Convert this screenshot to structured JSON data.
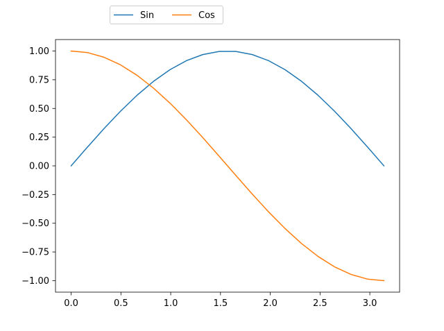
{
  "chart_data": {
    "type": "line",
    "title": "",
    "xlabel": "",
    "ylabel": "",
    "xlim": [
      -0.157,
      3.299
    ],
    "ylim": [
      -1.1,
      1.1
    ],
    "xticks": [
      0.0,
      0.5,
      1.0,
      1.5,
      2.0,
      2.5,
      3.0
    ],
    "xtick_labels": [
      "0.0",
      "0.5",
      "1.0",
      "1.5",
      "2.0",
      "2.5",
      "3.0"
    ],
    "yticks": [
      1.0,
      0.75,
      0.5,
      0.25,
      0.0,
      -0.25,
      -0.5,
      -0.75,
      -1.0
    ],
    "ytick_labels": [
      "1.00",
      "0.75",
      "0.50",
      "0.25",
      "0.00",
      "−0.25",
      "−0.50",
      "−0.75",
      "−1.00"
    ],
    "grid": false,
    "legend": {
      "placement": "top-center, above plot",
      "ncol": 2
    },
    "x": [
      0.0,
      0.1653,
      0.3307,
      0.496,
      0.6614,
      0.8267,
      0.9921,
      1.1574,
      1.3228,
      1.4881,
      1.6535,
      1.8188,
      1.9842,
      2.1495,
      2.3149,
      2.4802,
      2.6456,
      2.8109,
      2.9762,
      3.1416
    ],
    "series": [
      {
        "name": "Sin",
        "color": "#1f77b4",
        "values": [
          0.0,
          0.1646,
          0.3247,
          0.4759,
          0.6142,
          0.7357,
          0.8372,
          0.9158,
          0.9694,
          0.9966,
          0.9966,
          0.9694,
          0.9158,
          0.8372,
          0.7357,
          0.6142,
          0.4759,
          0.3247,
          0.1646,
          0.0
        ]
      },
      {
        "name": "Cos",
        "color": "#ff7f0e",
        "values": [
          1.0,
          0.9864,
          0.9458,
          0.8795,
          0.7891,
          0.6773,
          0.5469,
          0.4017,
          0.2455,
          0.0826,
          -0.0826,
          -0.2455,
          -0.4017,
          -0.5469,
          -0.6773,
          -0.7891,
          -0.8795,
          -0.9458,
          -0.9864,
          -1.0
        ]
      }
    ]
  }
}
